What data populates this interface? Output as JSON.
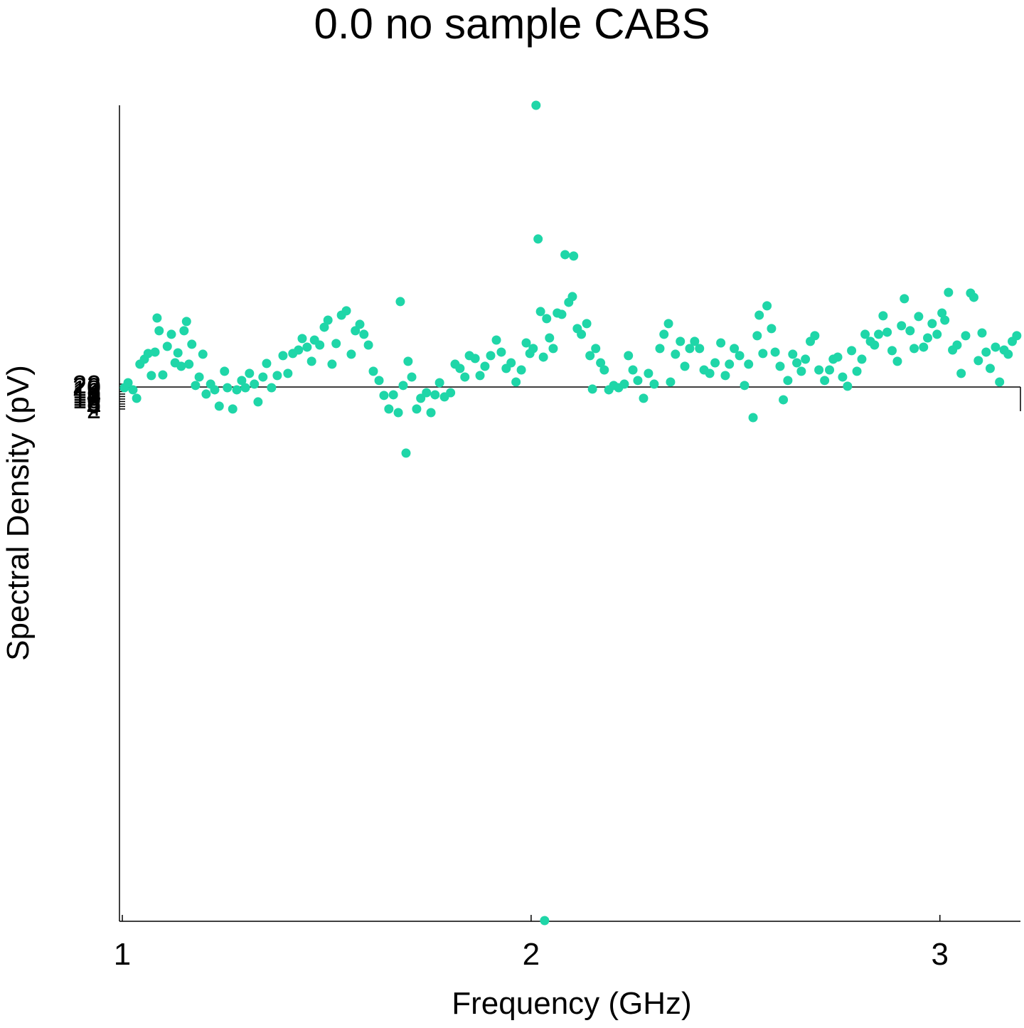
{
  "chart_data": {
    "type": "scatter",
    "title": "0.0 no sample CABS",
    "x_label": "Frequency (GHz)",
    "y_label": "Spectral Density (pV)",
    "xlim": [
      0.993,
      3.197
    ],
    "xticks": [
      1,
      2,
      3
    ],
    "ylim": [
      -409,
      246
    ],
    "yticks": [
      2,
      4,
      6,
      8,
      10,
      12,
      14,
      16,
      18,
      20,
      22
    ],
    "series": [
      {
        "color": "#1fd6a8",
        "x": [
          1.005,
          1.014,
          1.026,
          1.035,
          1.043,
          1.054,
          1.063,
          1.071,
          1.08,
          1.085,
          1.09,
          1.099,
          1.11,
          1.12,
          1.129,
          1.136,
          1.144,
          1.151,
          1.157,
          1.163,
          1.17,
          1.179,
          1.188,
          1.197,
          1.205,
          1.216,
          1.226,
          1.237,
          1.25,
          1.257,
          1.27,
          1.28,
          1.292,
          1.301,
          1.311,
          1.323,
          1.332,
          1.344,
          1.353,
          1.365,
          1.379,
          1.393,
          1.405,
          1.417,
          1.431,
          1.44,
          1.452,
          1.463,
          1.47,
          1.483,
          1.494,
          1.503,
          1.513,
          1.523,
          1.536,
          1.548,
          1.56,
          1.57,
          1.581,
          1.591,
          1.602,
          1.614,
          1.628,
          1.64,
          1.652,
          1.663,
          1.675,
          1.68,
          1.687,
          1.694,
          1.699,
          1.708,
          1.72,
          1.73,
          1.744,
          1.755,
          1.765,
          1.776,
          1.788,
          1.803,
          1.814,
          1.826,
          1.838,
          1.849,
          1.863,
          1.875,
          1.887,
          1.901,
          1.915,
          1.927,
          1.939,
          1.951,
          1.963,
          1.976,
          1.988,
          1.997,
          2.005,
          2.012,
          2.017,
          2.023,
          2.03,
          2.038,
          2.045,
          2.054,
          2.064,
          2.075,
          2.083,
          2.092,
          2.101,
          2.104,
          2.113,
          2.123,
          2.136,
          2.144,
          2.15,
          2.158,
          2.17,
          2.179,
          2.19,
          2.202,
          2.214,
          2.228,
          2.238,
          2.249,
          2.261,
          2.275,
          2.287,
          2.301,
          2.315,
          2.325,
          2.336,
          2.341,
          2.353,
          2.365,
          2.376,
          2.388,
          2.4,
          2.412,
          2.423,
          2.437,
          2.45,
          2.464,
          2.475,
          2.485,
          2.497,
          2.51,
          2.522,
          2.532,
          2.543,
          2.553,
          2.558,
          2.567,
          2.577,
          2.588,
          2.597,
          2.609,
          2.617,
          2.628,
          2.64,
          2.65,
          2.661,
          2.671,
          2.683,
          2.694,
          2.704,
          2.718,
          2.73,
          2.739,
          2.75,
          2.762,
          2.774,
          2.784,
          2.797,
          2.809,
          2.817,
          2.83,
          2.84,
          2.85,
          2.861,
          2.871,
          2.883,
          2.896,
          2.906,
          2.913,
          2.927,
          2.937,
          2.948,
          2.96,
          2.97,
          2.981,
          2.993,
          3.005,
          3.012,
          3.021,
          3.031,
          3.042,
          3.052,
          3.063,
          3.075,
          3.083,
          3.094,
          3.103,
          3.113,
          3.123,
          3.136,
          3.146,
          3.157,
          3.167,
          3.177,
          3.188,
          2.033
        ],
        "values": [
          19.1,
          23.1,
          17.4,
          10.6,
          38.0,
          42.0,
          46.6,
          28.9,
          47.7,
          75.1,
          64.9,
          29.4,
          52.3,
          62.0,
          39.1,
          47.1,
          36.3,
          64.9,
          72.3,
          38.0,
          54.0,
          20.9,
          27.7,
          46.0,
          14.0,
          22.0,
          17.4,
          4.3,
          32.3,
          19.1,
          2.0,
          17.4,
          24.9,
          19.1,
          30.6,
          22.0,
          7.7,
          27.7,
          38.6,
          19.1,
          28.9,
          44.9,
          30.6,
          46.6,
          49.4,
          58.6,
          51.7,
          40.3,
          57.4,
          53.4,
          67.7,
          73.4,
          38.0,
          54.6,
          77.4,
          80.9,
          46.0,
          64.9,
          70.0,
          62.0,
          53.4,
          32.3,
          24.9,
          12.9,
          2.0,
          13.4,
          -0.9,
          88.3,
          20.9,
          -33.4,
          40.3,
          27.7,
          2.0,
          10.6,
          15.1,
          -0.9,
          13.4,
          23.1,
          11.7,
          15.1,
          38.0,
          34.6,
          27.7,
          44.9,
          42.6,
          28.9,
          36.3,
          44.9,
          57.4,
          47.7,
          34.6,
          39.1,
          23.7,
          33.4,
          55.1,
          46.6,
          50.6,
          246,
          138.6,
          80.3,
          43.7,
          74.6,
          59.1,
          50.6,
          79.1,
          78.0,
          126.0,
          87.7,
          92.3,
          124.9,
          66.6,
          62.0,
          70.6,
          44.9,
          18.0,
          50.6,
          39.1,
          33.4,
          17.4,
          20.9,
          19.1,
          22.0,
          44.9,
          33.4,
          24.9,
          10.6,
          30.6,
          22.0,
          50.6,
          62.0,
          70.6,
          23.7,
          46.0,
          56.3,
          36.3,
          50.6,
          56.3,
          50.6,
          33.4,
          30.6,
          39.1,
          55.1,
          28.9,
          38.0,
          50.6,
          44.9,
          20.9,
          38.0,
          -4.9,
          60.9,
          77.4,
          46.6,
          84.9,
          66.6,
          47.7,
          36.3,
          9.4,
          24.9,
          46.0,
          39.1,
          32.3,
          42.0,
          56.3,
          60.9,
          33.4,
          24.9,
          33.4,
          42.0,
          43.7,
          27.7,
          20.3,
          48.9,
          32.3,
          42.0,
          62.0,
          56.3,
          53.4,
          62.0,
          76.9,
          63.7,
          48.9,
          40.3,
          68.9,
          90.6,
          64.9,
          50.6,
          76.3,
          51.7,
          59.1,
          70.6,
          62.0,
          79.1,
          73.4,
          95.7,
          49.4,
          53.4,
          30.6,
          60.9,
          95.1,
          91.7,
          40.9,
          63.1,
          47.7,
          34.6,
          51.7,
          23.7,
          49.4,
          46.0,
          56.3,
          60.9,
          -409
        ]
      }
    ]
  }
}
